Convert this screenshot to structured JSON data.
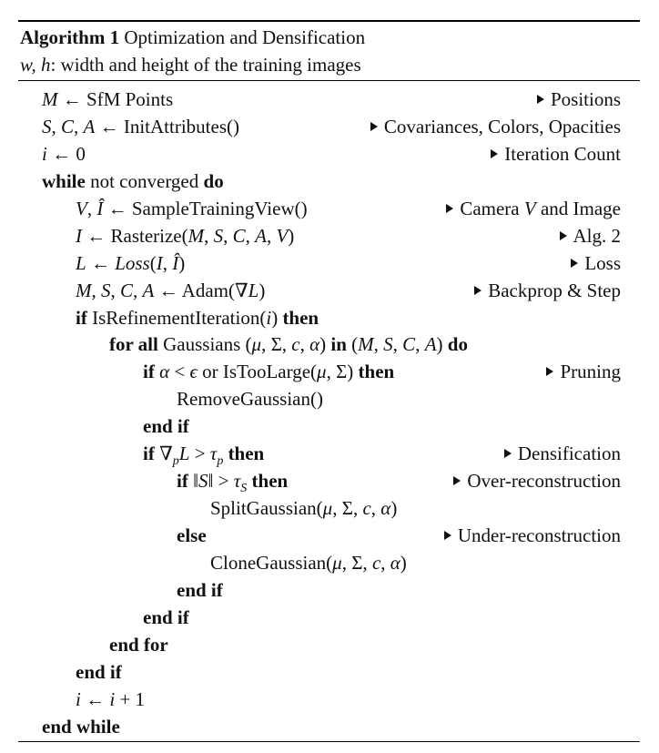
{
  "algorithm": {
    "label": "Algorithm 1",
    "title": "Optimization and Densification",
    "input_vars": "w, h",
    "input_desc": ": width and height of the training images"
  },
  "lines": [
    {
      "indent": 0,
      "code": "M ← SfM Points",
      "comment": "Positions"
    },
    {
      "indent": 0,
      "code": "S, C, A ← InitAttributes()",
      "comment": "Covariances, Colors, Opacities"
    },
    {
      "indent": 0,
      "code": "i ← 0",
      "comment": "Iteration Count"
    },
    {
      "indent": 0,
      "code": "while not converged do",
      "comment": ""
    },
    {
      "indent": 1,
      "code": "V, Î ← SampleTrainingView()",
      "comment": "Camera V and Image"
    },
    {
      "indent": 1,
      "code": "I ← Rasterize(M, S, C, A, V)",
      "comment": "Alg. 2"
    },
    {
      "indent": 1,
      "code": "L ← Loss(I, Î)",
      "comment": "Loss"
    },
    {
      "indent": 1,
      "code": "M, S, C, A ← Adam(∇L)",
      "comment": "Backprop & Step"
    },
    {
      "indent": 1,
      "code": "if IsRefinementIteration(i) then",
      "comment": ""
    },
    {
      "indent": 2,
      "code": "for all Gaussians (μ, Σ, c, α) in (M, S, C, A) do",
      "comment": ""
    },
    {
      "indent": 3,
      "code": "if α < ϵ or IsTooLarge(μ, Σ) then",
      "comment": "Pruning"
    },
    {
      "indent": 4,
      "code": "RemoveGaussian()",
      "comment": ""
    },
    {
      "indent": 3,
      "code": "end if",
      "comment": ""
    },
    {
      "indent": 3,
      "code": "if ∇pL > τp then",
      "comment": "Densification"
    },
    {
      "indent": 4,
      "code": "if ‖S‖ > τS then",
      "comment": "Over-reconstruction"
    },
    {
      "indent": 5,
      "code": "SplitGaussian(μ, Σ, c, α)",
      "comment": ""
    },
    {
      "indent": 4,
      "code": "else",
      "comment": "Under-reconstruction"
    },
    {
      "indent": 5,
      "code": "CloneGaussian(μ, Σ, c, α)",
      "comment": ""
    },
    {
      "indent": 4,
      "code": "end if",
      "comment": ""
    },
    {
      "indent": 3,
      "code": "end if",
      "comment": ""
    },
    {
      "indent": 2,
      "code": "end for",
      "comment": ""
    },
    {
      "indent": 1,
      "code": "end if",
      "comment": ""
    },
    {
      "indent": 1,
      "code": "i ← i + 1",
      "comment": ""
    },
    {
      "indent": 0,
      "code": "end while",
      "comment": ""
    }
  ]
}
